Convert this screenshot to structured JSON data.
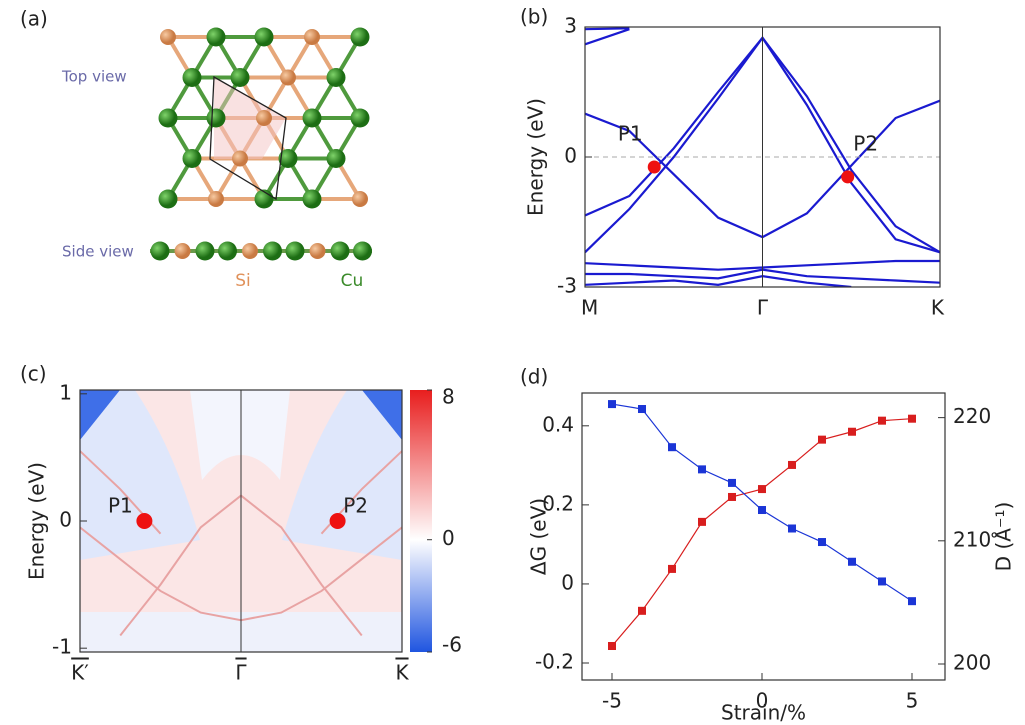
{
  "structure": {
    "panel_label": "(a)",
    "top_view_label": "Top view",
    "side_view_label": "Side view",
    "species": [
      "Si",
      "Cu"
    ]
  },
  "chart_data": [
    {
      "type": "line",
      "panel_label": "(b)",
      "y_label": "Energy (eV)",
      "x": [
        0,
        0.25,
        0.5,
        0.75,
        1,
        1.25,
        1.5,
        1.75,
        2
      ],
      "xlim": [
        0,
        2
      ],
      "xticks": [
        {
          "value": 0,
          "label": "M"
        },
        {
          "value": 1,
          "label": "Γ"
        },
        {
          "value": 2,
          "label": "K"
        }
      ],
      "ylim": [
        -3,
        3
      ],
      "yticks": [
        -3,
        0,
        3
      ],
      "xgrid": true,
      "ygrid": "dashed",
      "color": "#1a1ad0",
      "series": [
        {
          "values": [
            1.0,
            0.6,
            -0.4,
            -1.4,
            -1.85,
            -1.3,
            -0.2,
            0.9,
            1.3
          ]
        },
        {
          "values": [
            -1.35,
            -0.9,
            0.2,
            1.5,
            2.75,
            1.4,
            -0.3,
            -1.6,
            -2.2
          ]
        },
        {
          "values": [
            -2.2,
            -1.2,
            0.0,
            1.35,
            2.75,
            1.2,
            -0.6,
            -1.9,
            -2.2
          ]
        },
        {
          "values": [
            2.6,
            2.95,
            null,
            null,
            null,
            null,
            null,
            null,
            null
          ]
        },
        {
          "values": [
            2.95,
            2.97,
            null,
            null,
            null,
            null,
            null,
            null,
            null
          ]
        },
        {
          "values": [
            -2.45,
            -2.5,
            -2.55,
            -2.6,
            -2.55,
            -2.5,
            -2.45,
            -2.4,
            -2.4
          ]
        },
        {
          "values": [
            -2.7,
            -2.7,
            -2.75,
            -2.8,
            -2.6,
            -2.75,
            -2.8,
            -2.85,
            -2.9
          ]
        },
        {
          "values": [
            -2.95,
            -2.9,
            -2.85,
            -2.95,
            -2.75,
            -2.9,
            -3,
            null,
            null
          ]
        }
      ],
      "points": [
        {
          "label": "P1",
          "x": 0.39,
          "y": -0.23
        },
        {
          "label": "P2",
          "x": 1.48,
          "y": -0.46
        }
      ],
      "point_color": "#ee1111"
    },
    {
      "type": "heatmap",
      "panel_label": "(c)",
      "y_label": "Energy (eV)",
      "x": [
        -1,
        -0.75,
        -0.5,
        -0.25,
        0,
        0.25,
        0.5,
        0.75,
        1
      ],
      "xlim": [
        -1,
        1
      ],
      "xticks": [
        {
          "value": -1,
          "label": "K′"
        },
        {
          "value": 0,
          "label": "Γ"
        },
        {
          "value": 1,
          "label": "K"
        }
      ],
      "ylim": [
        -1.03,
        1.03
      ],
      "yticks": [
        -1,
        0,
        1
      ],
      "xgrid": true,
      "color": "#e8a3a3",
      "clim": [
        -6,
        8
      ],
      "cticks": [
        -6,
        0,
        8
      ],
      "colormap": [
        "#1f55e0",
        "#ffffff",
        "#e81e1e"
      ],
      "series": [
        {
          "values": [
            -0.05,
            -0.3,
            -0.55,
            -0.72,
            -0.78,
            -0.72,
            -0.55,
            -0.3,
            -0.05
          ]
        },
        {
          "values": [
            null,
            -0.9,
            -0.5,
            -0.05,
            0.2,
            -0.05,
            -0.5,
            -0.9,
            null
          ]
        },
        {
          "values": [
            0.55,
            0.25,
            -0.1,
            null,
            null,
            null,
            -0.1,
            0.25,
            0.55
          ]
        }
      ],
      "points": [
        {
          "label": "P1",
          "x": -0.6,
          "y": 0
        },
        {
          "label": "P2",
          "x": 0.6,
          "y": 0
        }
      ],
      "point_color": "#ee1111"
    },
    {
      "type": "line",
      "panel_label": "(d)",
      "x_label": "Strain/%",
      "y_label": "ΔG (eV)",
      "y2_label": "D (Å⁻¹)",
      "x": [
        -5,
        -4,
        -3,
        -2,
        -1,
        0,
        1,
        2,
        3,
        4,
        5
      ],
      "xlim": [
        -6,
        6.1
      ],
      "xticks": [
        -5,
        0,
        5
      ],
      "ylim": [
        -0.243,
        0.483
      ],
      "yticks": [
        -0.2,
        0,
        0.2,
        0.4
      ],
      "y2lim": [
        198.7,
        222
      ],
      "y2ticks": [
        200,
        210,
        220
      ],
      "markers": true,
      "series": [
        {
          "color": "#d81e1e",
          "values": [
            -0.157,
            -0.068,
            0.038,
            0.157,
            0.22,
            0.24,
            0.301,
            0.365,
            0.385,
            0.413,
            0.418
          ]
        },
        {
          "color": "#1b35d6",
          "axis": "y2",
          "values": [
            221.1,
            220.7,
            217.6,
            215.8,
            214.7,
            212.5,
            211.0,
            209.9,
            208.3,
            206.7,
            205.1
          ]
        }
      ]
    }
  ]
}
